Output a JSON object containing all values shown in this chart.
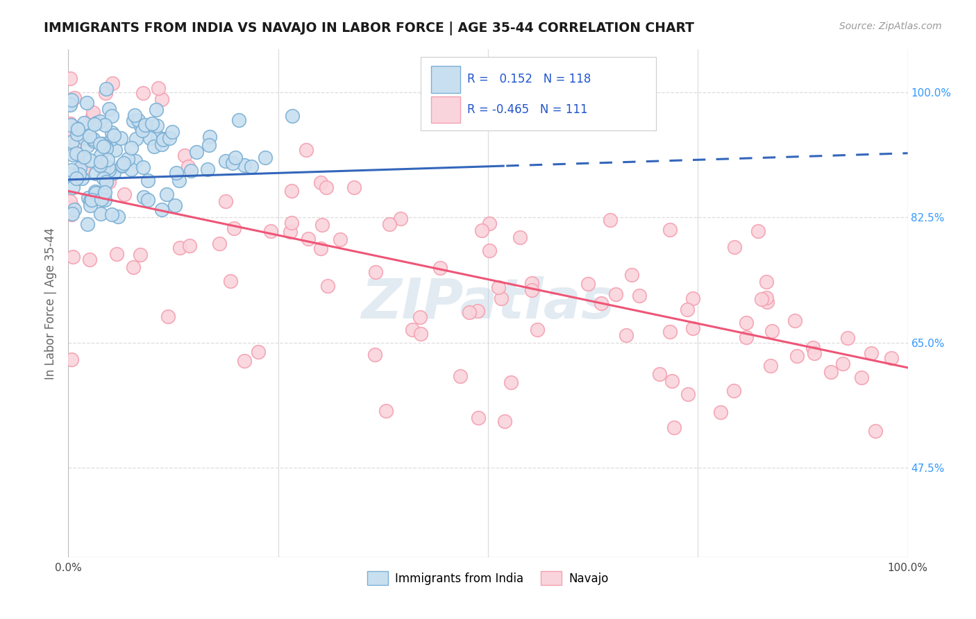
{
  "title": "IMMIGRANTS FROM INDIA VS NAVAJO IN LABOR FORCE | AGE 35-44 CORRELATION CHART",
  "source": "Source: ZipAtlas.com",
  "ylabel": "In Labor Force | Age 35-44",
  "yticks": [
    "47.5%",
    "65.0%",
    "82.5%",
    "100.0%"
  ],
  "ytick_values": [
    0.475,
    0.65,
    0.825,
    1.0
  ],
  "xlim": [
    0.0,
    1.0
  ],
  "ylim": [
    0.35,
    1.06
  ],
  "india_R": 0.152,
  "india_N": 118,
  "navajo_R": -0.465,
  "navajo_N": 111,
  "india_color": "#7bafd4",
  "navajo_color": "#f4a0b0",
  "india_fill": "#c8dff0",
  "navajo_fill": "#fad4dc",
  "india_line_color": "#3366bb",
  "navajo_line_color": "#ee5577",
  "legend_entries": [
    "Immigrants from India",
    "Navajo"
  ],
  "watermark": "ZIPatlas",
  "background_color": "#ffffff",
  "grid_color": "#dddddd",
  "india_trend_start_y": 0.878,
  "india_trend_end_y": 0.915,
  "navajo_trend_start_y": 0.862,
  "navajo_trend_end_y": 0.615
}
